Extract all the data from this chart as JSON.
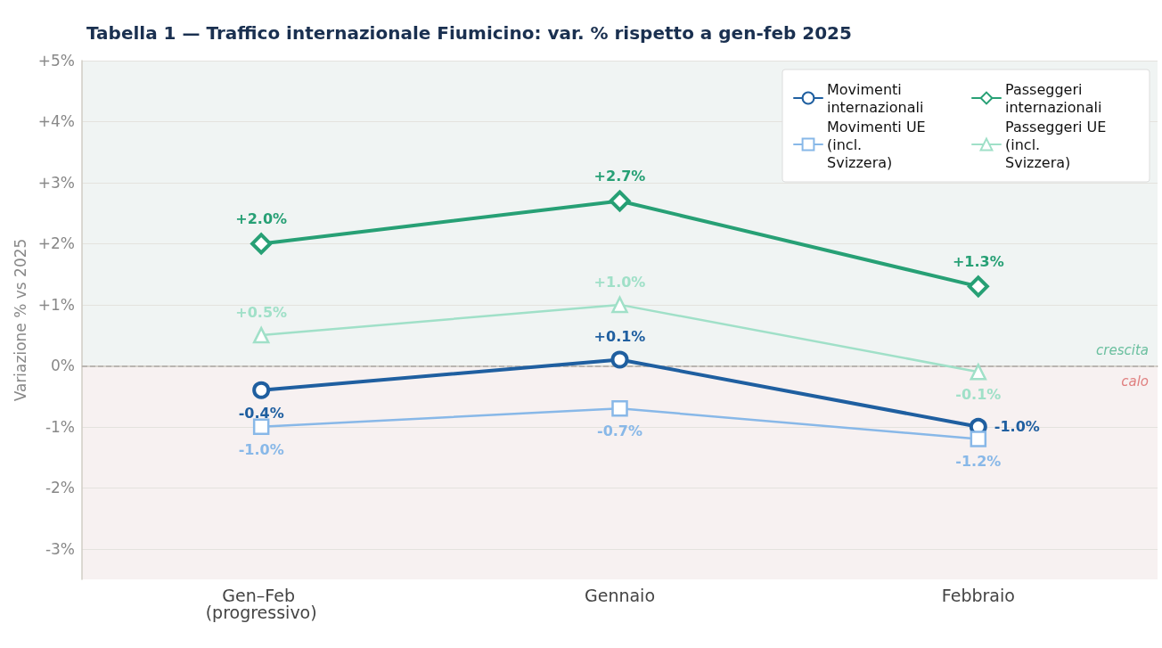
{
  "chart_data": {
    "type": "line",
    "title": "Tabella 1 — Traffico internazionale Fiumicino: var. % rispetto a gen-feb 2025",
    "ylabel": "Variazione % vs 2025",
    "categories": [
      "Gen–Feb (progressivo)",
      "Gennaio",
      "Febbraio"
    ],
    "series": [
      {
        "name": "Movimenti internazionali",
        "color": "#1f5fa0",
        "marker": "circle",
        "values": [
          -0.4,
          0.1,
          -1.0
        ],
        "value_labels": [
          "-0.4%",
          "+0.1%",
          "-1.0%"
        ]
      },
      {
        "name": "Passeggeri internazionali",
        "color": "#27a075",
        "marker": "diamond",
        "values": [
          2.0,
          2.7,
          1.3
        ],
        "value_labels": [
          "+2.0%",
          "+2.7%",
          "+1.3%"
        ]
      },
      {
        "name": "Movimenti UE (incl. Svizzera)",
        "color": "#88b8e8",
        "marker": "square",
        "values": [
          -1.0,
          -0.7,
          -1.2
        ],
        "value_labels": [
          "-1.0%",
          "-0.7%",
          "-1.2%"
        ]
      },
      {
        "name": "Passeggeri UE (incl. Svizzera)",
        "color": "#a0e0c8",
        "marker": "triangle",
        "values": [
          0.5,
          1.0,
          -0.1
        ],
        "value_labels": [
          "+0.5%",
          "+1.0%",
          "-0.1%"
        ]
      }
    ],
    "ylim": [
      -3.5,
      5
    ],
    "yticks": [
      {
        "value": -3,
        "label": "-3%"
      },
      {
        "value": -2,
        "label": "-2%"
      },
      {
        "value": -1,
        "label": "-1%"
      },
      {
        "value": 0,
        "label": "0%"
      },
      {
        "value": 1,
        "label": "+1%"
      },
      {
        "value": 2,
        "label": "+2%"
      },
      {
        "value": 3,
        "label": "+3%"
      },
      {
        "value": 4,
        "label": "+4%"
      },
      {
        "value": 5,
        "label": "+5%"
      }
    ],
    "ref_lines": [
      {
        "axis": "y",
        "value": 0,
        "color": "#b0aca8",
        "line_style": "dashed"
      }
    ],
    "bands": [
      {
        "axis": "y",
        "from": 0,
        "to": 5,
        "label": "crescita",
        "color": "#f0f4f3"
      },
      {
        "axis": "y",
        "from": -3.5,
        "to": 0,
        "label": "calo",
        "color": "#f7f1f1"
      }
    ],
    "grid": "y",
    "legend": "top right"
  }
}
